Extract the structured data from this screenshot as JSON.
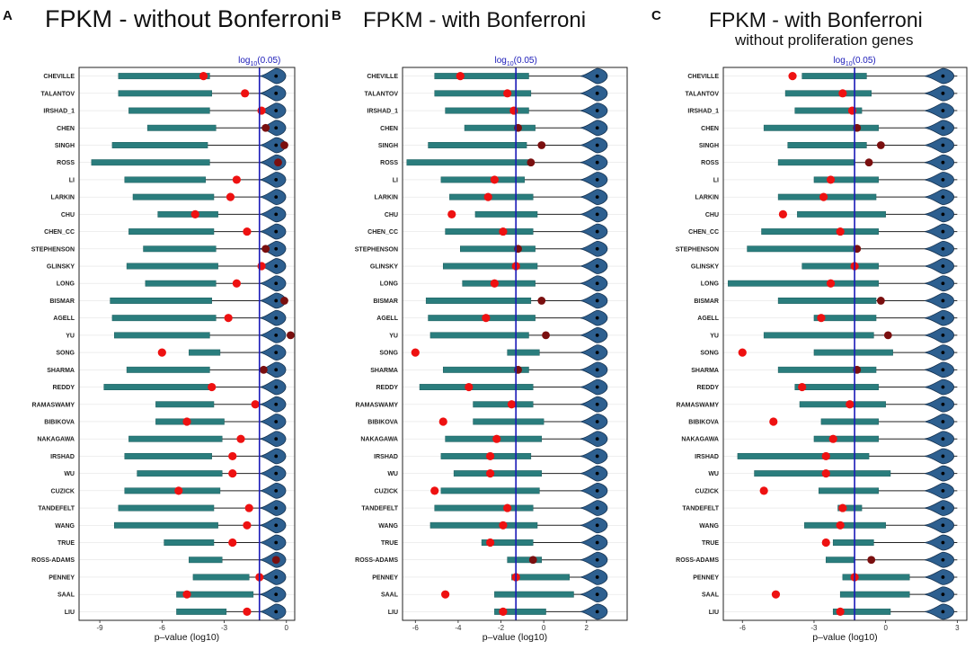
{
  "chart_data": [
    {
      "type": "forest-violin",
      "panel": "A",
      "title": "FPKM - without Bonferroni",
      "subtitle": "",
      "xlabel": "p–value (log10)",
      "xlim": [
        -10,
        0.4
      ],
      "xticks": [
        -9,
        -6,
        -3,
        0
      ],
      "tick_labels": [
        "-9",
        "-6",
        "-3",
        "0"
      ],
      "ref_line": {
        "value": -1.30103,
        "label_base": "log",
        "label_sub": "10",
        "label_rest": "(0.05)"
      },
      "categories": [
        "CHEVILLE",
        "TALANTOV",
        "IRSHAD_1",
        "CHEN",
        "SINGH",
        "ROSS",
        "LI",
        "LARKIN",
        "CHU",
        "CHEN_CC",
        "STEPHENSON",
        "GLINSKY",
        "LONG",
        "BISMAR",
        "AGELL",
        "YU",
        "SONG",
        "SHARMA",
        "REDDY",
        "RAMASWAMY",
        "BIBIKOVA",
        "NAKAGAWA",
        "IRSHAD",
        "WU",
        "CUZICK",
        "TANDEFELT",
        "WANG",
        "TRUE",
        "ROSS-ADAMS",
        "PENNEY",
        "SAAL",
        "LIU"
      ],
      "series": [
        {
          "name": "bar_low",
          "values": [
            -8.1,
            -8.1,
            -7.6,
            -6.7,
            -8.4,
            -9.4,
            -7.8,
            -7.4,
            -6.2,
            -7.6,
            -6.9,
            -7.7,
            -6.8,
            -8.5,
            -8.4,
            -8.3,
            -4.7,
            -7.7,
            -8.8,
            -6.3,
            -6.3,
            -7.6,
            -7.8,
            -7.2,
            -7.8,
            -8.1,
            -8.3,
            -5.9,
            -4.7,
            -4.5,
            -5.3,
            -5.3
          ]
        },
        {
          "name": "bar_high",
          "values": [
            -3.7,
            -3.6,
            -3.7,
            -3.4,
            -3.8,
            -3.7,
            -3.9,
            -3.5,
            -3.3,
            -3.5,
            -3.4,
            -3.3,
            -3.4,
            -3.6,
            -3.4,
            -3.7,
            -3.2,
            -3.7,
            -3.5,
            -3.5,
            -3.0,
            -3.1,
            -3.6,
            -3.1,
            -3.2,
            -3.5,
            -3.3,
            -3.5,
            -3.1,
            -1.8,
            -1.6,
            -2.9
          ]
        },
        {
          "name": "ci_high",
          "values": [
            -0.1,
            -0.1,
            -0.1,
            -0.1,
            -0.1,
            -0.1,
            -0.1,
            -0.1,
            -0.1,
            -0.1,
            -0.1,
            -0.1,
            -0.1,
            -0.1,
            -0.1,
            -0.1,
            -0.1,
            -0.1,
            -0.1,
            -0.1,
            -0.1,
            -0.1,
            -0.1,
            -0.1,
            -0.1,
            -0.1,
            -0.1,
            -0.1,
            -0.1,
            -0.1,
            -0.1,
            -0.1
          ]
        },
        {
          "name": "violin_median",
          "values": [
            -0.5,
            -0.5,
            -0.5,
            -0.5,
            -0.5,
            -0.5,
            -0.5,
            -0.5,
            -0.5,
            -0.5,
            -0.5,
            -0.5,
            -0.5,
            -0.5,
            -0.5,
            -0.5,
            -0.5,
            -0.5,
            -0.5,
            -0.5,
            -0.5,
            -0.5,
            -0.5,
            -0.5,
            -0.5,
            -0.5,
            -0.5,
            -0.5,
            -0.5,
            -0.5,
            -0.5,
            -0.5
          ]
        },
        {
          "name": "observed",
          "values": [
            -4.0,
            -2.0,
            -1.2,
            -1.0,
            -0.1,
            -0.4,
            -2.4,
            -2.7,
            -4.4,
            -1.9,
            -1.0,
            -1.2,
            -2.4,
            -0.1,
            -2.8,
            0.2,
            -6.0,
            -1.1,
            -3.6,
            -1.5,
            -4.8,
            -2.2,
            -2.6,
            -2.6,
            -5.2,
            -1.8,
            -1.9,
            -2.6,
            -0.5,
            -1.3,
            -4.8,
            -1.9
          ]
        },
        {
          "name": "significant",
          "values": [
            1,
            1,
            1,
            0,
            0,
            0,
            1,
            1,
            1,
            1,
            0,
            1,
            1,
            0,
            1,
            0,
            1,
            0,
            1,
            1,
            1,
            1,
            1,
            1,
            1,
            1,
            1,
            1,
            0,
            1,
            1,
            1
          ]
        }
      ]
    },
    {
      "type": "forest-violin",
      "panel": "B",
      "title": "FPKM - with Bonferroni",
      "subtitle": "",
      "xlabel": "p–value (log10)",
      "xlim": [
        -6.6,
        3.9
      ],
      "xticks": [
        -6,
        -4,
        -2,
        0,
        2
      ],
      "tick_labels": [
        "-6",
        "-4",
        "-2",
        "0",
        "2"
      ],
      "ref_line": {
        "value": -1.30103,
        "label_base": "log",
        "label_sub": "10",
        "label_rest": "(0.05)"
      },
      "categories": [
        "CHEVILLE",
        "TALANTOV",
        "IRSHAD_1",
        "CHEN",
        "SINGH",
        "ROSS",
        "LI",
        "LARKIN",
        "CHU",
        "CHEN_CC",
        "STEPHENSON",
        "GLINSKY",
        "LONG",
        "BISMAR",
        "AGELL",
        "YU",
        "SONG",
        "SHARMA",
        "REDDY",
        "RAMASWAMY",
        "BIBIKOVA",
        "NAKAGAWA",
        "IRSHAD",
        "WU",
        "CUZICK",
        "TANDEFELT",
        "WANG",
        "TRUE",
        "ROSS-ADAMS",
        "PENNEY",
        "SAAL",
        "LIU"
      ],
      "series": [
        {
          "name": "bar_low",
          "values": [
            -5.1,
            -5.1,
            -4.6,
            -3.7,
            -5.4,
            -6.4,
            -4.8,
            -4.4,
            -3.2,
            -4.6,
            -3.9,
            -4.7,
            -3.8,
            -5.5,
            -5.4,
            -5.3,
            -1.7,
            -4.7,
            -5.8,
            -3.3,
            -3.3,
            -4.6,
            -4.8,
            -4.2,
            -4.8,
            -5.1,
            -5.3,
            -2.9,
            -1.7,
            -1.5,
            -2.3,
            -2.3
          ]
        },
        {
          "name": "bar_high",
          "values": [
            -0.7,
            -0.6,
            -0.7,
            -0.4,
            -0.8,
            -0.7,
            -0.9,
            -0.5,
            -0.3,
            -0.5,
            -0.4,
            -0.3,
            -0.4,
            -0.6,
            -0.4,
            -0.7,
            -0.2,
            -0.7,
            -0.5,
            -0.5,
            0.0,
            -0.1,
            -0.6,
            -0.1,
            -0.2,
            -0.5,
            -0.3,
            -0.5,
            -0.1,
            1.2,
            1.4,
            0.1
          ]
        },
        {
          "name": "ci_high",
          "values": [
            2.9,
            2.9,
            2.9,
            2.9,
            2.9,
            2.9,
            2.9,
            2.9,
            2.9,
            2.9,
            2.9,
            2.9,
            2.9,
            2.9,
            2.9,
            2.9,
            2.9,
            2.9,
            2.9,
            2.9,
            2.9,
            2.9,
            2.9,
            2.9,
            2.9,
            2.9,
            2.9,
            2.9,
            2.9,
            2.9,
            2.9,
            2.9
          ]
        },
        {
          "name": "violin_median",
          "values": [
            2.5,
            2.5,
            2.5,
            2.5,
            2.5,
            2.5,
            2.5,
            2.5,
            2.5,
            2.5,
            2.5,
            2.5,
            2.5,
            2.5,
            2.5,
            2.5,
            2.5,
            2.5,
            2.5,
            2.5,
            2.5,
            2.5,
            2.5,
            2.5,
            2.5,
            2.5,
            2.5,
            2.5,
            2.5,
            2.5,
            2.5,
            2.5
          ]
        },
        {
          "name": "observed",
          "values": [
            -3.9,
            -1.7,
            -1.4,
            -1.2,
            -0.1,
            -0.6,
            -2.3,
            -2.6,
            -4.3,
            -1.9,
            -1.2,
            -1.3,
            -2.3,
            -0.1,
            -2.7,
            0.1,
            -6.0,
            -1.2,
            -3.5,
            -1.5,
            -4.7,
            -2.2,
            -2.5,
            -2.5,
            -5.1,
            -1.7,
            -1.9,
            -2.5,
            -0.5,
            -1.3,
            -4.6,
            -1.9
          ]
        },
        {
          "name": "significant",
          "values": [
            1,
            1,
            1,
            0,
            0,
            0,
            1,
            1,
            1,
            1,
            0,
            1,
            1,
            0,
            1,
            0,
            1,
            0,
            1,
            1,
            1,
            1,
            1,
            1,
            1,
            1,
            1,
            1,
            0,
            1,
            1,
            1
          ]
        }
      ]
    },
    {
      "type": "forest-violin",
      "panel": "C",
      "title": "FPKM - with Bonferroni",
      "subtitle": "without proliferation genes",
      "xlabel": "p–value (log10)",
      "xlim": [
        -6.8,
        3.4
      ],
      "xticks": [
        -6,
        -3,
        0,
        3
      ],
      "tick_labels": [
        "-6",
        "-3",
        "0",
        "3"
      ],
      "ref_line": {
        "value": -1.30103,
        "label_base": "log",
        "label_sub": "10",
        "label_rest": "(0.05)"
      },
      "categories": [
        "CHEVILLE",
        "TALANTOV",
        "IRSHAD_1",
        "CHEN",
        "SINGH",
        "ROSS",
        "LI",
        "LARKIN",
        "CHU",
        "CHEN_CC",
        "STEPHENSON",
        "GLINSKY",
        "LONG",
        "BISMAR",
        "AGELL",
        "YU",
        "SONG",
        "SHARMA",
        "REDDY",
        "RAMASWAMY",
        "BIBIKOVA",
        "NAKAGAWA",
        "IRSHAD",
        "WU",
        "CUZICK",
        "TANDEFELT",
        "WANG",
        "TRUE",
        "ROSS-ADAMS",
        "PENNEY",
        "SAAL",
        "LIU"
      ],
      "series": [
        {
          "name": "bar_low",
          "values": [
            -3.5,
            -4.2,
            -3.8,
            -5.1,
            -4.1,
            -4.5,
            -3.0,
            -4.5,
            -3.7,
            -5.2,
            -5.8,
            -3.5,
            -6.6,
            -4.5,
            -3.0,
            -5.1,
            -3.0,
            -4.5,
            -3.8,
            -3.6,
            -2.7,
            -3.0,
            -6.2,
            -5.5,
            -2.8,
            -2.0,
            -3.4,
            -2.2,
            -2.5,
            -1.8,
            -1.9,
            -2.2
          ]
        },
        {
          "name": "bar_high",
          "values": [
            -0.8,
            -0.6,
            -1.0,
            -0.3,
            -0.8,
            -1.3,
            -0.3,
            -0.4,
            0.0,
            -0.3,
            -1.2,
            -0.3,
            -0.3,
            -0.4,
            -0.4,
            -0.5,
            0.3,
            -0.4,
            -0.3,
            0.0,
            -0.3,
            -0.3,
            -0.7,
            0.2,
            -0.3,
            -1.0,
            0.0,
            -0.5,
            -1.3,
            1.0,
            1.0,
            0.2
          ]
        },
        {
          "name": "ci_high",
          "values": [
            3.0,
            3.0,
            3.0,
            3.0,
            3.0,
            3.0,
            3.0,
            3.0,
            3.0,
            3.0,
            3.0,
            3.0,
            3.0,
            3.0,
            3.0,
            3.0,
            3.0,
            3.0,
            3.0,
            3.0,
            3.0,
            3.0,
            3.0,
            3.0,
            3.0,
            3.0,
            3.0,
            3.0,
            3.0,
            3.0,
            3.0,
            3.0
          ]
        },
        {
          "name": "violin_median",
          "values": [
            2.4,
            2.4,
            2.4,
            2.4,
            2.4,
            2.4,
            2.4,
            2.4,
            2.4,
            2.4,
            2.4,
            2.4,
            2.4,
            2.4,
            2.4,
            2.4,
            2.4,
            2.4,
            2.4,
            2.4,
            2.4,
            2.4,
            2.4,
            2.4,
            2.4,
            2.4,
            2.4,
            2.4,
            2.4,
            2.4,
            2.4,
            2.4
          ]
        },
        {
          "name": "observed",
          "values": [
            -3.9,
            -1.8,
            -1.4,
            -1.2,
            -0.2,
            -0.7,
            -2.3,
            -2.6,
            -4.3,
            -1.9,
            -1.2,
            -1.3,
            -2.3,
            -0.2,
            -2.7,
            0.1,
            -6.0,
            -1.2,
            -3.5,
            -1.5,
            -4.7,
            -2.2,
            -2.5,
            -2.5,
            -5.1,
            -1.8,
            -1.9,
            -2.5,
            -0.6,
            -1.3,
            -4.6,
            -1.9
          ]
        },
        {
          "name": "significant",
          "values": [
            1,
            1,
            1,
            0,
            0,
            0,
            1,
            1,
            1,
            1,
            0,
            1,
            1,
            0,
            1,
            0,
            1,
            0,
            1,
            1,
            1,
            1,
            1,
            1,
            1,
            1,
            1,
            1,
            0,
            1,
            1,
            1
          ]
        }
      ]
    }
  ],
  "colors": {
    "bar": "#2a7d7d",
    "bar_edge": "#1f5e5e",
    "ci_line": "#222222",
    "violin": "#2d5f8f",
    "violin_edge": "#16324f",
    "point_sig": "#ee1111",
    "point_nonsig": "#7a0f0f",
    "ref_line": "#1a1ab8",
    "grid": "#e3e3e3"
  }
}
